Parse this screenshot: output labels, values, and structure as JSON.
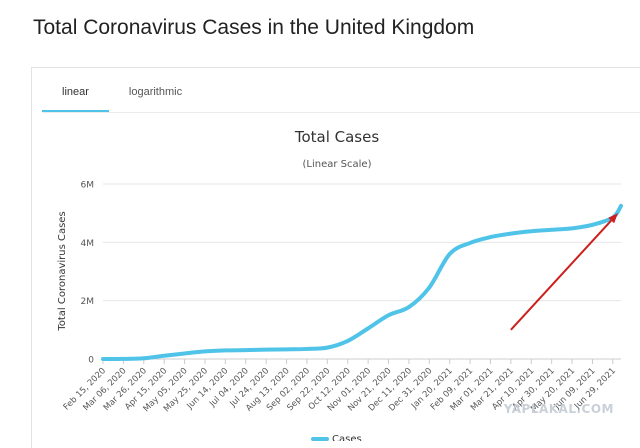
{
  "page": {
    "title": "Total Coronavirus Cases in the United Kingdom"
  },
  "tabs": [
    {
      "label": "linear",
      "active": true
    },
    {
      "label": "logarithmic",
      "active": false
    }
  ],
  "watermark": "YAPLAKAL.COM",
  "colors": {
    "line": "#4fc3e8",
    "arrow": "#cc1f1f",
    "grid": "#e6e6e6",
    "tab_accent": "#4fc3e8"
  },
  "chart_data": {
    "type": "line",
    "title": "Total Cases",
    "subtitle": "(Linear Scale)",
    "xlabel": "",
    "ylabel": "Total Coronavirus Cases",
    "ylim": [
      0,
      6000000
    ],
    "y_ticks": [
      {
        "value": 0,
        "label": "0"
      },
      {
        "value": 2000000,
        "label": "2M"
      },
      {
        "value": 4000000,
        "label": "4M"
      },
      {
        "value": 6000000,
        "label": "6M"
      }
    ],
    "x_tick_labels": [
      "Feb 15, 2020",
      "Mar 06, 2020",
      "Mar 26, 2020",
      "Apr 15, 2020",
      "May 05, 2020",
      "May 25, 2020",
      "Jun 14, 2020",
      "Jul 04, 2020",
      "Jul 24, 2020",
      "Aug 13, 2020",
      "Sep 02, 2020",
      "Sep 22, 2020",
      "Oct 12, 2020",
      "Nov 01, 2020",
      "Nov 21, 2020",
      "Dec 11, 2020",
      "Dec 31, 2020",
      "Jan 20, 2021",
      "Feb 09, 2021",
      "Mar 01, 2021",
      "Mar 21, 2021",
      "Apr 10, 2021",
      "Apr 30, 2021",
      "May 20, 2021",
      "Jun 09, 2021",
      "Jun 29, 2021"
    ],
    "legend": {
      "placement": "bottom",
      "entries": [
        "Cases"
      ]
    },
    "grid": true,
    "series": [
      {
        "name": "Cases",
        "x": [
          "2020-02-15",
          "2020-03-06",
          "2020-03-26",
          "2020-04-15",
          "2020-05-05",
          "2020-05-25",
          "2020-06-14",
          "2020-07-04",
          "2020-07-24",
          "2020-08-13",
          "2020-09-02",
          "2020-09-22",
          "2020-10-12",
          "2020-11-01",
          "2020-11-21",
          "2020-12-11",
          "2020-12-31",
          "2021-01-20",
          "2021-02-09",
          "2021-03-01",
          "2021-03-21",
          "2021-04-10",
          "2021-04-30",
          "2021-05-20",
          "2021-06-09",
          "2021-06-29",
          "2021-07-07"
        ],
        "values": [
          0,
          3000,
          25000,
          110000,
          190000,
          260000,
          295000,
          305000,
          320000,
          330000,
          345000,
          390000,
          620000,
          1050000,
          1500000,
          1780000,
          2450000,
          3600000,
          3980000,
          4180000,
          4300000,
          4380000,
          4430000,
          4480000,
          4600000,
          4850000,
          5250000
        ]
      }
    ],
    "annotations": [
      {
        "type": "arrow",
        "color": "#cc1f1f",
        "from": [
          "2021-03-21",
          1000000
        ],
        "to": [
          "2021-07-04",
          5000000
        ]
      }
    ]
  }
}
